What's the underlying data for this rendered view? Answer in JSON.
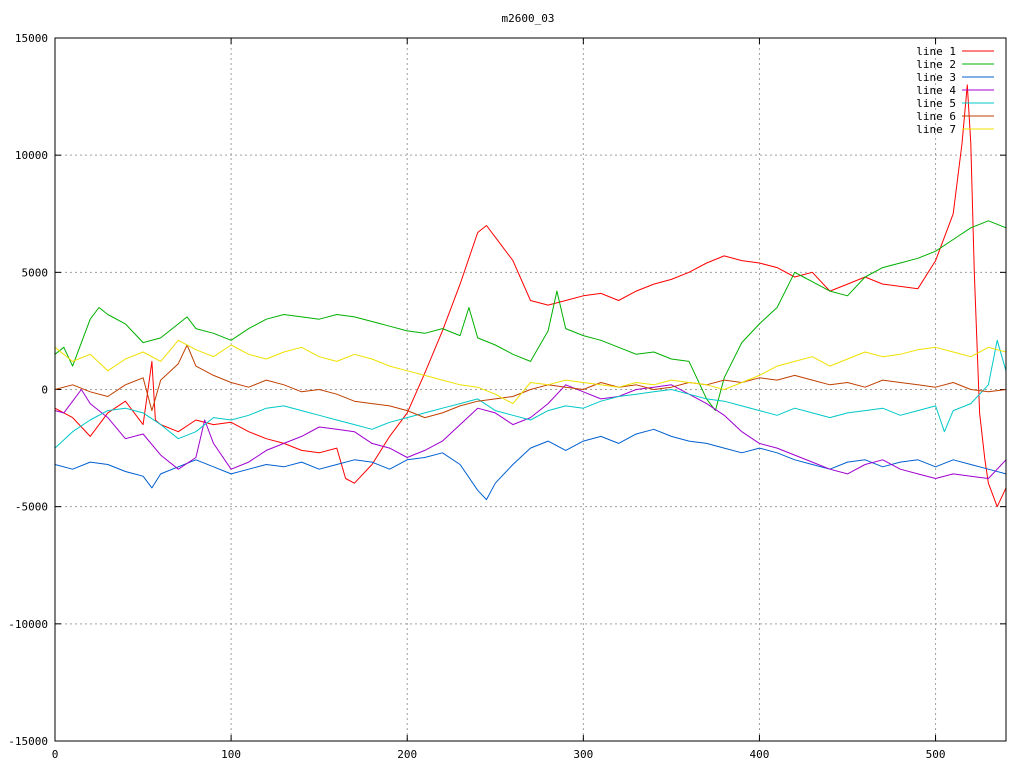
{
  "chart_data": {
    "type": "line",
    "title": "m2600_03",
    "xlabel": "",
    "ylabel": "",
    "xlim": [
      0,
      540
    ],
    "ylim": [
      -15000,
      15000
    ],
    "x_ticks": [
      0,
      100,
      200,
      300,
      400,
      500
    ],
    "y_ticks": [
      -15000,
      -10000,
      -5000,
      0,
      5000,
      10000,
      15000
    ],
    "grid": true,
    "legend_position": "top-right",
    "series": [
      {
        "name": "line 1",
        "color": "#ff0000",
        "x": [
          0,
          10,
          20,
          30,
          40,
          50,
          55,
          57,
          60,
          70,
          80,
          90,
          100,
          110,
          120,
          130,
          140,
          150,
          160,
          165,
          170,
          180,
          190,
          200,
          210,
          220,
          230,
          240,
          245,
          250,
          260,
          270,
          280,
          290,
          300,
          310,
          320,
          330,
          340,
          350,
          360,
          370,
          380,
          390,
          400,
          410,
          420,
          430,
          440,
          450,
          460,
          470,
          480,
          490,
          500,
          505,
          510,
          515,
          518,
          520,
          522,
          525,
          528,
          530,
          535,
          540
        ],
        "values": [
          -800,
          -1200,
          -2000,
          -1000,
          -500,
          -1500,
          1200,
          -1300,
          -1500,
          -1800,
          -1300,
          -1500,
          -1400,
          -1800,
          -2100,
          -2300,
          -2600,
          -2700,
          -2500,
          -3800,
          -4000,
          -3200,
          -2000,
          -1000,
          700,
          2500,
          4500,
          6700,
          7000,
          6500,
          5500,
          3800,
          3600,
          3800,
          4000,
          4100,
          3800,
          4200,
          4500,
          4700,
          5000,
          5400,
          5700,
          5500,
          5400,
          5200,
          4800,
          5000,
          4200,
          4500,
          4800,
          4500,
          4400,
          4300,
          5500,
          6500,
          7500,
          10500,
          13000,
          10500,
          5000,
          -1000,
          -3000,
          -4000,
          -5000,
          -4200
        ]
      },
      {
        "name": "line 2",
        "color": "#00b000",
        "x": [
          0,
          5,
          10,
          20,
          25,
          30,
          40,
          50,
          60,
          70,
          75,
          80,
          90,
          100,
          110,
          120,
          130,
          140,
          150,
          160,
          170,
          180,
          190,
          200,
          210,
          220,
          230,
          235,
          240,
          250,
          260,
          270,
          280,
          285,
          290,
          300,
          310,
          320,
          330,
          340,
          350,
          360,
          370,
          375,
          380,
          390,
          400,
          410,
          420,
          425,
          430,
          440,
          450,
          460,
          470,
          480,
          490,
          500,
          510,
          520,
          530,
          540
        ],
        "values": [
          1500,
          1800,
          1000,
          3000,
          3500,
          3200,
          2800,
          2000,
          2200,
          2800,
          3100,
          2600,
          2400,
          2100,
          2600,
          3000,
          3200,
          3100,
          3000,
          3200,
          3100,
          2900,
          2700,
          2500,
          2400,
          2600,
          2300,
          3500,
          2200,
          1900,
          1500,
          1200,
          2500,
          4200,
          2600,
          2300,
          2100,
          1800,
          1500,
          1600,
          1300,
          1200,
          -400,
          -900,
          500,
          2000,
          2800,
          3500,
          5000,
          4800,
          4600,
          4200,
          4000,
          4800,
          5200,
          5400,
          5600,
          5900,
          6400,
          6900,
          7200,
          6900
        ]
      },
      {
        "name": "line 3",
        "color": "#0060d0",
        "x": [
          0,
          10,
          20,
          30,
          40,
          50,
          55,
          60,
          70,
          80,
          90,
          100,
          110,
          120,
          130,
          140,
          150,
          160,
          170,
          180,
          190,
          200,
          210,
          220,
          230,
          240,
          245,
          250,
          260,
          270,
          280,
          290,
          300,
          310,
          320,
          330,
          340,
          350,
          360,
          370,
          380,
          390,
          400,
          410,
          420,
          430,
          440,
          450,
          460,
          470,
          480,
          490,
          500,
          510,
          520,
          530,
          540
        ],
        "values": [
          -3200,
          -3400,
          -3100,
          -3200,
          -3500,
          -3700,
          -4200,
          -3600,
          -3300,
          -3000,
          -3300,
          -3600,
          -3400,
          -3200,
          -3300,
          -3100,
          -3400,
          -3200,
          -3000,
          -3100,
          -3400,
          -3000,
          -2900,
          -2700,
          -3200,
          -4300,
          -4700,
          -4000,
          -3200,
          -2500,
          -2200,
          -2600,
          -2200,
          -2000,
          -2300,
          -1900,
          -1700,
          -2000,
          -2200,
          -2300,
          -2500,
          -2700,
          -2500,
          -2700,
          -3000,
          -3200,
          -3400,
          -3100,
          -3000,
          -3300,
          -3100,
          -3000,
          -3300,
          -3000,
          -3200,
          -3400,
          -3600
        ]
      },
      {
        "name": "line 4",
        "color": "#a000d0",
        "x": [
          0,
          5,
          10,
          15,
          20,
          30,
          40,
          50,
          60,
          70,
          80,
          85,
          90,
          100,
          110,
          120,
          130,
          140,
          150,
          160,
          170,
          180,
          190,
          200,
          210,
          220,
          230,
          240,
          250,
          260,
          270,
          280,
          290,
          300,
          310,
          320,
          330,
          340,
          350,
          360,
          370,
          380,
          390,
          400,
          410,
          420,
          430,
          440,
          450,
          460,
          470,
          480,
          490,
          500,
          510,
          520,
          530,
          540
        ],
        "values": [
          -900,
          -1000,
          -500,
          0,
          -600,
          -1200,
          -2100,
          -1900,
          -2800,
          -3400,
          -2900,
          -1300,
          -2300,
          -3400,
          -3100,
          -2600,
          -2300,
          -2000,
          -1600,
          -1700,
          -1800,
          -2300,
          -2500,
          -2900,
          -2600,
          -2200,
          -1500,
          -800,
          -1000,
          -1500,
          -1200,
          -600,
          200,
          -100,
          -400,
          -300,
          0,
          100,
          200,
          -200,
          -600,
          -1100,
          -1800,
          -2300,
          -2500,
          -2800,
          -3100,
          -3400,
          -3600,
          -3200,
          -3000,
          -3400,
          -3600,
          -3800,
          -3600,
          -3700,
          -3800,
          -3000
        ]
      },
      {
        "name": "line 5",
        "color": "#00c8c8",
        "x": [
          0,
          10,
          20,
          30,
          40,
          50,
          60,
          70,
          80,
          90,
          100,
          110,
          120,
          130,
          140,
          150,
          160,
          170,
          180,
          190,
          200,
          210,
          220,
          230,
          240,
          250,
          260,
          270,
          280,
          290,
          300,
          310,
          320,
          330,
          340,
          350,
          360,
          370,
          380,
          390,
          400,
          410,
          420,
          430,
          440,
          450,
          460,
          470,
          480,
          490,
          500,
          505,
          510,
          520,
          530,
          535,
          540
        ],
        "values": [
          -2500,
          -1800,
          -1300,
          -900,
          -800,
          -1000,
          -1500,
          -2100,
          -1800,
          -1200,
          -1300,
          -1100,
          -800,
          -700,
          -900,
          -1100,
          -1300,
          -1500,
          -1700,
          -1400,
          -1200,
          -1000,
          -800,
          -600,
          -400,
          -900,
          -1100,
          -1300,
          -900,
          -700,
          -800,
          -500,
          -300,
          -200,
          -100,
          0,
          -200,
          -400,
          -500,
          -700,
          -900,
          -1100,
          -800,
          -1000,
          -1200,
          -1000,
          -900,
          -800,
          -1100,
          -900,
          -700,
          -1800,
          -900,
          -600,
          200,
          2100,
          800
        ]
      },
      {
        "name": "line 6",
        "color": "#c04000",
        "x": [
          0,
          10,
          20,
          30,
          40,
          50,
          55,
          60,
          70,
          75,
          80,
          90,
          100,
          110,
          120,
          130,
          140,
          150,
          160,
          170,
          180,
          190,
          200,
          210,
          220,
          230,
          240,
          250,
          260,
          270,
          280,
          290,
          300,
          310,
          320,
          330,
          340,
          350,
          360,
          370,
          380,
          390,
          400,
          410,
          420,
          430,
          440,
          450,
          460,
          470,
          480,
          490,
          500,
          510,
          520,
          530,
          540
        ],
        "values": [
          0,
          200,
          -100,
          -300,
          200,
          500,
          -900,
          400,
          1100,
          1900,
          1000,
          600,
          300,
          100,
          400,
          200,
          -100,
          0,
          -200,
          -500,
          -600,
          -700,
          -900,
          -1200,
          -1000,
          -700,
          -500,
          -400,
          -300,
          0,
          200,
          100,
          0,
          300,
          100,
          200,
          0,
          100,
          300,
          200,
          400,
          300,
          500,
          400,
          600,
          400,
          200,
          300,
          100,
          400,
          300,
          200,
          100,
          300,
          0,
          -100,
          0
        ]
      },
      {
        "name": "line 7",
        "color": "#f0e000",
        "x": [
          0,
          10,
          20,
          30,
          40,
          50,
          60,
          70,
          80,
          90,
          100,
          110,
          120,
          130,
          140,
          150,
          160,
          170,
          180,
          190,
          200,
          210,
          220,
          230,
          240,
          250,
          260,
          270,
          280,
          290,
          300,
          310,
          320,
          330,
          340,
          350,
          360,
          370,
          380,
          390,
          400,
          410,
          420,
          430,
          440,
          450,
          460,
          470,
          480,
          490,
          500,
          510,
          520,
          530,
          540
        ],
        "values": [
          1800,
          1200,
          1500,
          800,
          1300,
          1600,
          1200,
          2100,
          1700,
          1400,
          1900,
          1500,
          1300,
          1600,
          1800,
          1400,
          1200,
          1500,
          1300,
          1000,
          800,
          600,
          400,
          200,
          100,
          -200,
          -600,
          300,
          200,
          400,
          300,
          200,
          100,
          300,
          200,
          400,
          300,
          200,
          0,
          300,
          600,
          1000,
          1200,
          1400,
          1000,
          1300,
          1600,
          1400,
          1500,
          1700,
          1800,
          1600,
          1400,
          1800,
          1600
        ]
      }
    ]
  }
}
